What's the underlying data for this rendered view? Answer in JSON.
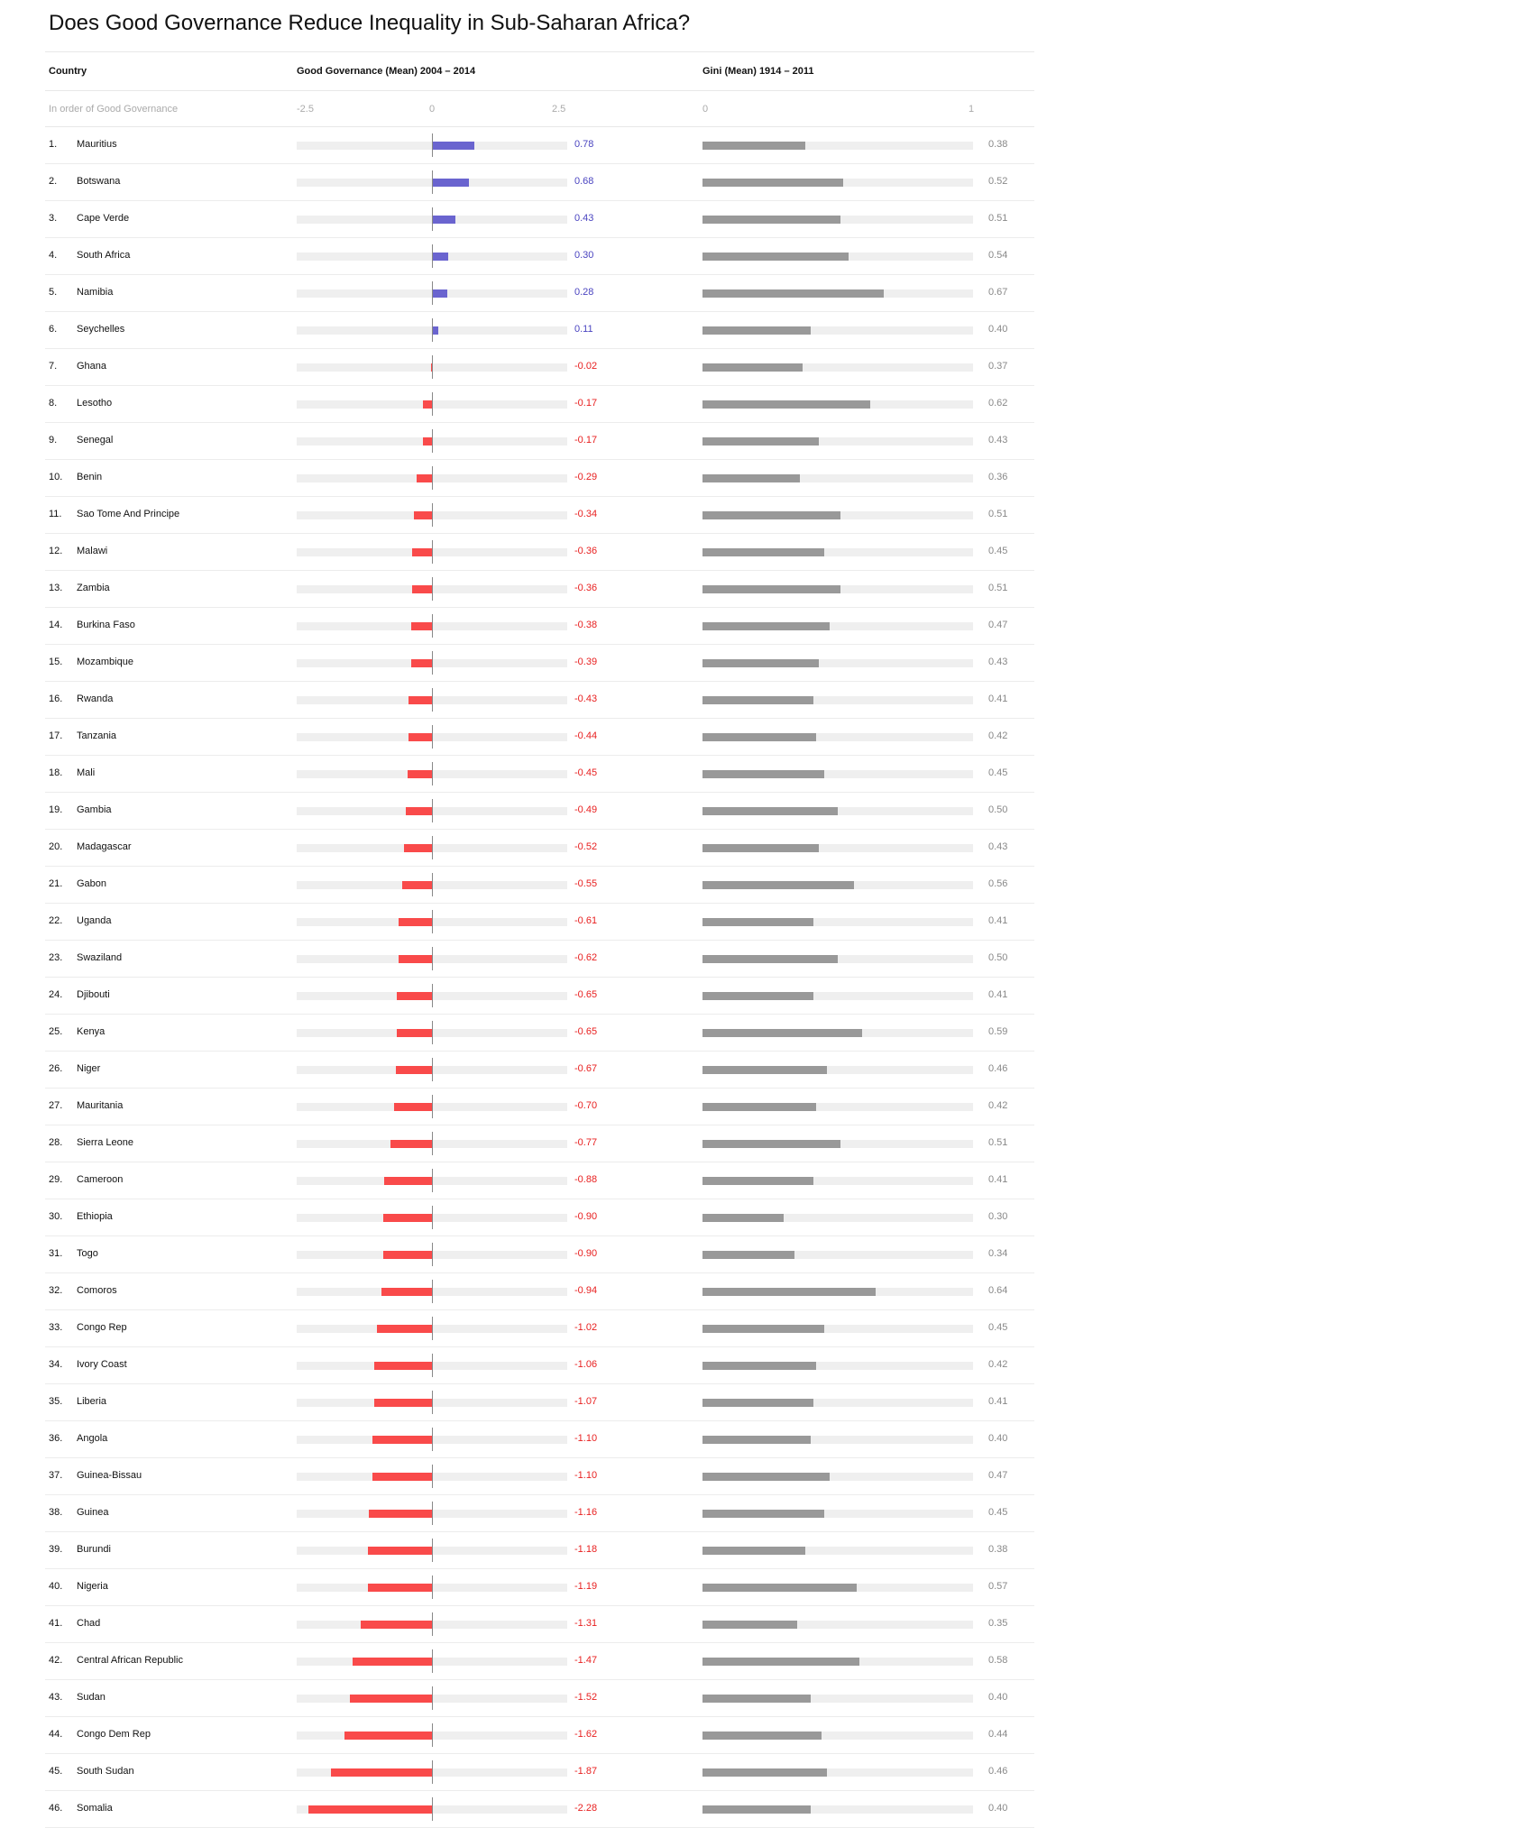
{
  "title": "Does Good Governance Reduce Inequality in Sub-Saharan Africa?",
  "headers": {
    "country": "Country",
    "governance": "Good Governance (Mean) 2004 – 2014",
    "gini": "Gini (Mean) 1914 – 2011"
  },
  "subheader": {
    "order_note": "In order of Good Governance",
    "gg_ticks": [
      "-2.5",
      "0",
      "2.5"
    ],
    "gini_ticks": [
      "0",
      "1"
    ]
  },
  "colors": {
    "positive": "#6a64cf",
    "negative": "#f94a4a",
    "gini": "#999999",
    "track": "#efefef"
  },
  "chart_data": {
    "type": "bar",
    "gg_range": [
      -2.5,
      2.5
    ],
    "gini_range": [
      0,
      1
    ],
    "rows": [
      {
        "rank": "1.",
        "country": "Mauritius",
        "governance": 0.78,
        "governance_label": "0.78",
        "gini": 0.38,
        "gini_label": "0.38"
      },
      {
        "rank": "2.",
        "country": "Botswana",
        "governance": 0.68,
        "governance_label": "0.68",
        "gini": 0.52,
        "gini_label": "0.52"
      },
      {
        "rank": "3.",
        "country": "Cape Verde",
        "governance": 0.43,
        "governance_label": "0.43",
        "gini": 0.51,
        "gini_label": "0.51"
      },
      {
        "rank": "4.",
        "country": "South Africa",
        "governance": 0.3,
        "governance_label": "0.30",
        "gini": 0.54,
        "gini_label": "0.54"
      },
      {
        "rank": "5.",
        "country": "Namibia",
        "governance": 0.28,
        "governance_label": "0.28",
        "gini": 0.67,
        "gini_label": "0.67"
      },
      {
        "rank": "6.",
        "country": "Seychelles",
        "governance": 0.11,
        "governance_label": "0.11",
        "gini": 0.4,
        "gini_label": "0.40"
      },
      {
        "rank": "7.",
        "country": "Ghana",
        "governance": -0.02,
        "governance_label": "-0.02",
        "gini": 0.37,
        "gini_label": "0.37"
      },
      {
        "rank": "8.",
        "country": "Lesotho",
        "governance": -0.17,
        "governance_label": "-0.17",
        "gini": 0.62,
        "gini_label": "0.62"
      },
      {
        "rank": "9.",
        "country": "Senegal",
        "governance": -0.17,
        "governance_label": "-0.17",
        "gini": 0.43,
        "gini_label": "0.43"
      },
      {
        "rank": "10.",
        "country": "Benin",
        "governance": -0.29,
        "governance_label": "-0.29",
        "gini": 0.36,
        "gini_label": "0.36"
      },
      {
        "rank": "11.",
        "country": "Sao Tome And Principe",
        "governance": -0.34,
        "governance_label": "-0.34",
        "gini": 0.51,
        "gini_label": "0.51"
      },
      {
        "rank": "12.",
        "country": "Malawi",
        "governance": -0.36,
        "governance_label": "-0.36",
        "gini": 0.45,
        "gini_label": "0.45"
      },
      {
        "rank": "13.",
        "country": "Zambia",
        "governance": -0.36,
        "governance_label": "-0.36",
        "gini": 0.51,
        "gini_label": "0.51"
      },
      {
        "rank": "14.",
        "country": "Burkina Faso",
        "governance": -0.38,
        "governance_label": "-0.38",
        "gini": 0.47,
        "gini_label": "0.47"
      },
      {
        "rank": "15.",
        "country": "Mozambique",
        "governance": -0.39,
        "governance_label": "-0.39",
        "gini": 0.43,
        "gini_label": "0.43"
      },
      {
        "rank": "16.",
        "country": "Rwanda",
        "governance": -0.43,
        "governance_label": "-0.43",
        "gini": 0.41,
        "gini_label": "0.41"
      },
      {
        "rank": "17.",
        "country": "Tanzania",
        "governance": -0.44,
        "governance_label": "-0.44",
        "gini": 0.42,
        "gini_label": "0.42"
      },
      {
        "rank": "18.",
        "country": "Mali",
        "governance": -0.45,
        "governance_label": "-0.45",
        "gini": 0.45,
        "gini_label": "0.45"
      },
      {
        "rank": "19.",
        "country": "Gambia",
        "governance": -0.49,
        "governance_label": "-0.49",
        "gini": 0.5,
        "gini_label": "0.50"
      },
      {
        "rank": "20.",
        "country": "Madagascar",
        "governance": -0.52,
        "governance_label": "-0.52",
        "gini": 0.43,
        "gini_label": "0.43"
      },
      {
        "rank": "21.",
        "country": "Gabon",
        "governance": -0.55,
        "governance_label": "-0.55",
        "gini": 0.56,
        "gini_label": "0.56"
      },
      {
        "rank": "22.",
        "country": "Uganda",
        "governance": -0.61,
        "governance_label": "-0.61",
        "gini": 0.41,
        "gini_label": "0.41"
      },
      {
        "rank": "23.",
        "country": "Swaziland",
        "governance": -0.62,
        "governance_label": "-0.62",
        "gini": 0.5,
        "gini_label": "0.50"
      },
      {
        "rank": "24.",
        "country": "Djibouti",
        "governance": -0.65,
        "governance_label": "-0.65",
        "gini": 0.41,
        "gini_label": "0.41"
      },
      {
        "rank": "25.",
        "country": "Kenya",
        "governance": -0.65,
        "governance_label": "-0.65",
        "gini": 0.59,
        "gini_label": "0.59"
      },
      {
        "rank": "26.",
        "country": "Niger",
        "governance": -0.67,
        "governance_label": "-0.67",
        "gini": 0.46,
        "gini_label": "0.46"
      },
      {
        "rank": "27.",
        "country": "Mauritania",
        "governance": -0.7,
        "governance_label": "-0.70",
        "gini": 0.42,
        "gini_label": "0.42"
      },
      {
        "rank": "28.",
        "country": "Sierra Leone",
        "governance": -0.77,
        "governance_label": "-0.77",
        "gini": 0.51,
        "gini_label": "0.51"
      },
      {
        "rank": "29.",
        "country": "Cameroon",
        "governance": -0.88,
        "governance_label": "-0.88",
        "gini": 0.41,
        "gini_label": "0.41"
      },
      {
        "rank": "30.",
        "country": "Ethiopia",
        "governance": -0.9,
        "governance_label": "-0.90",
        "gini": 0.3,
        "gini_label": "0.30"
      },
      {
        "rank": "31.",
        "country": "Togo",
        "governance": -0.9,
        "governance_label": "-0.90",
        "gini": 0.34,
        "gini_label": "0.34"
      },
      {
        "rank": "32.",
        "country": "Comoros",
        "governance": -0.94,
        "governance_label": "-0.94",
        "gini": 0.64,
        "gini_label": "0.64"
      },
      {
        "rank": "33.",
        "country": "Congo Rep",
        "governance": -1.02,
        "governance_label": "-1.02",
        "gini": 0.45,
        "gini_label": "0.45"
      },
      {
        "rank": "34.",
        "country": "Ivory Coast",
        "governance": -1.06,
        "governance_label": "-1.06",
        "gini": 0.42,
        "gini_label": "0.42"
      },
      {
        "rank": "35.",
        "country": "Liberia",
        "governance": -1.07,
        "governance_label": "-1.07",
        "gini": 0.41,
        "gini_label": "0.41"
      },
      {
        "rank": "36.",
        "country": "Angola",
        "governance": -1.1,
        "governance_label": "-1.10",
        "gini": 0.4,
        "gini_label": "0.40"
      },
      {
        "rank": "37.",
        "country": "Guinea-Bissau",
        "governance": -1.1,
        "governance_label": "-1.10",
        "gini": 0.47,
        "gini_label": "0.47"
      },
      {
        "rank": "38.",
        "country": "Guinea",
        "governance": -1.16,
        "governance_label": "-1.16",
        "gini": 0.45,
        "gini_label": "0.45"
      },
      {
        "rank": "39.",
        "country": "Burundi",
        "governance": -1.18,
        "governance_label": "-1.18",
        "gini": 0.38,
        "gini_label": "0.38"
      },
      {
        "rank": "40.",
        "country": "Nigeria",
        "governance": -1.19,
        "governance_label": "-1.19",
        "gini": 0.57,
        "gini_label": "0.57"
      },
      {
        "rank": "41.",
        "country": "Chad",
        "governance": -1.31,
        "governance_label": "-1.31",
        "gini": 0.35,
        "gini_label": "0.35"
      },
      {
        "rank": "42.",
        "country": "Central African Republic",
        "governance": -1.47,
        "governance_label": "-1.47",
        "gini": 0.58,
        "gini_label": "0.58"
      },
      {
        "rank": "43.",
        "country": "Sudan",
        "governance": -1.52,
        "governance_label": "-1.52",
        "gini": 0.4,
        "gini_label": "0.40"
      },
      {
        "rank": "44.",
        "country": "Congo Dem Rep",
        "governance": -1.62,
        "governance_label": "-1.62",
        "gini": 0.44,
        "gini_label": "0.44"
      },
      {
        "rank": "45.",
        "country": "South Sudan",
        "governance": -1.87,
        "governance_label": "-1.87",
        "gini": 0.46,
        "gini_label": "0.46"
      },
      {
        "rank": "46.",
        "country": "Somalia",
        "governance": -2.28,
        "governance_label": "-2.28",
        "gini": 0.4,
        "gini_label": "0.40"
      }
    ]
  }
}
